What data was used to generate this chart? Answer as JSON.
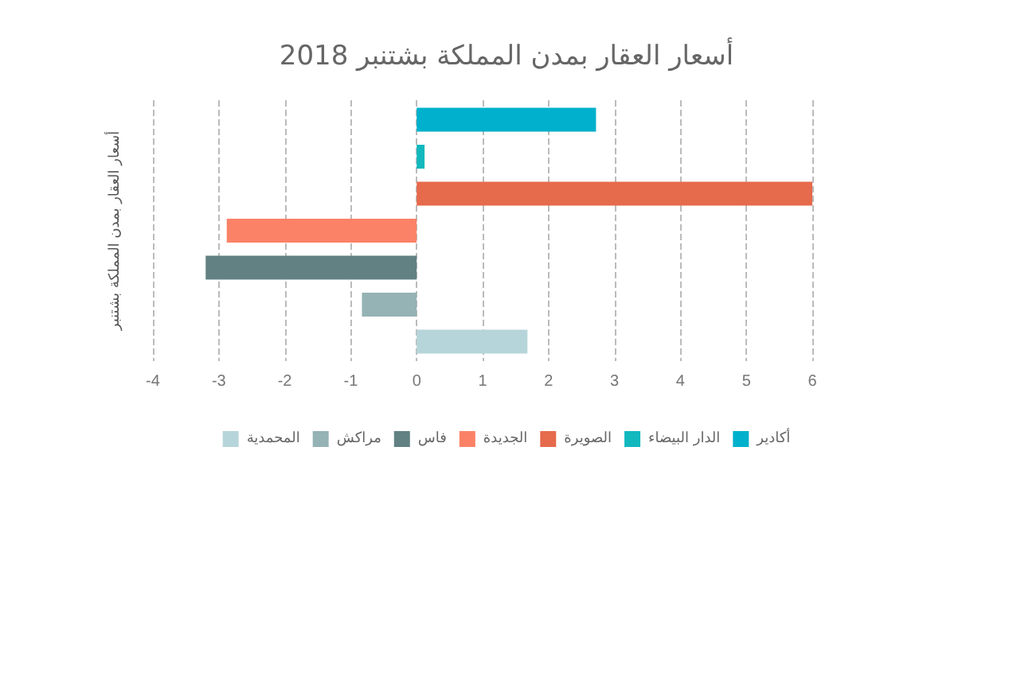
{
  "chart_data": {
    "type": "bar",
    "orientation": "horizontal",
    "title": "أسعار العقار بمدن المملكة بشتنبر 2018",
    "ylabel": "أسعار العقار بمدن المملكة بشتنبر",
    "categories": [
      null
    ],
    "series": [
      {
        "name": "أكادير",
        "color": "#00b0cc",
        "values": [
          2.72
        ]
      },
      {
        "name": "الدار البيضاء",
        "color": "#11b8be",
        "values": [
          0.12
        ]
      },
      {
        "name": "الصويرة",
        "color": "#e66a4c",
        "values": [
          6.0
        ]
      },
      {
        "name": "الجديدة",
        "color": "#fb8266",
        "values": [
          -2.88
        ]
      },
      {
        "name": "فاس",
        "color": "#628183",
        "values": [
          -3.2
        ]
      },
      {
        "name": "مراكش",
        "color": "#95b2b5",
        "values": [
          -0.83
        ]
      },
      {
        "name": "المحمدية",
        "color": "#b6d5da",
        "values": [
          1.68
        ]
      }
    ],
    "xlim": [
      -4,
      6
    ],
    "xticks": [
      -4,
      -3,
      -2,
      -1,
      0,
      1,
      2,
      3,
      4,
      5,
      6
    ],
    "grid": "x",
    "legend": "bottom"
  }
}
